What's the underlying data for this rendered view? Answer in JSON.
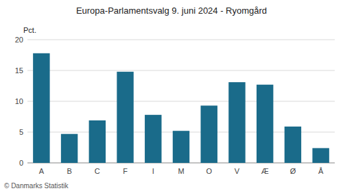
{
  "chart_data": {
    "type": "bar",
    "title": "Europa-Parlamentsvalg 9. juni 2024 - Ryomgård",
    "categories": [
      "A",
      "B",
      "C",
      "F",
      "I",
      "M",
      "O",
      "V",
      "Æ",
      "Ø",
      "Å"
    ],
    "values": [
      17.8,
      4.7,
      6.9,
      14.8,
      7.8,
      5.2,
      9.3,
      13.1,
      12.7,
      5.9,
      2.4
    ],
    "color": "#1a6b8a",
    "ylabel": "Pct.",
    "footer": "© Danmarks Statistik",
    "ylim": [
      0,
      20
    ],
    "yticks": [
      0,
      5,
      10,
      15,
      20
    ],
    "grid": true
  }
}
